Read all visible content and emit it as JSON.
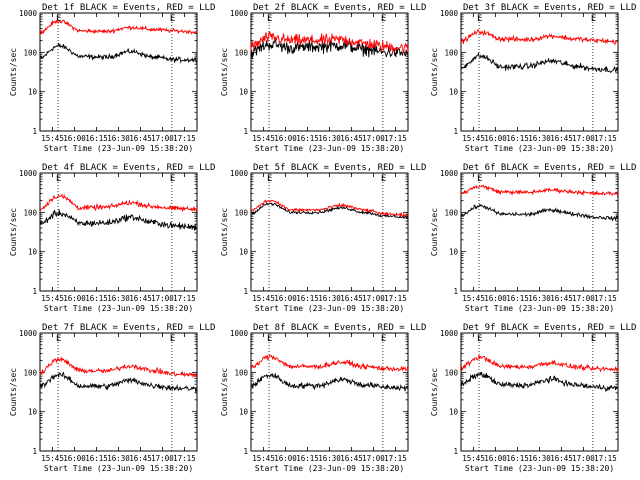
{
  "figure": {
    "xlabel": "Start Time (23-Jun-09 15:38:20)",
    "ylabel": "Counts/sec",
    "colors": {
      "events": "#000000",
      "lld": "#ff0000",
      "axes": "#000000"
    }
  },
  "chart_data": [
    {
      "type": "line",
      "title": "Det 1f BLACK = Events, RED = LLD",
      "xlim": [
        0,
        100
      ],
      "ylim": [
        1,
        1000
      ],
      "yscale": "log",
      "xticks": [
        "15:45",
        "16:00",
        "16:15",
        "16:30",
        "16:45",
        "17:00",
        "17:15"
      ],
      "yticks": [
        "1",
        "10",
        "100",
        "1000"
      ],
      "event_markers": [
        {
          "t": 11.5,
          "label": "E"
        },
        {
          "t": 84,
          "label": "E"
        }
      ],
      "series": [
        {
          "color": "#000000",
          "noise": 0.05,
          "x": [
            0,
            12,
            26,
            42,
            58,
            72,
            86,
            100
          ],
          "values": [
            70,
            145,
            78,
            75,
            105,
            75,
            65,
            65
          ]
        },
        {
          "color": "#ff0000",
          "noise": 0.04,
          "x": [
            0,
            12,
            26,
            42,
            58,
            72,
            86,
            100
          ],
          "values": [
            320,
            620,
            350,
            340,
            430,
            380,
            350,
            330
          ]
        }
      ]
    },
    {
      "type": "line",
      "title": "Det 2f BLACK = Events, RED = LLD",
      "xlim": [
        0,
        100
      ],
      "ylim": [
        1,
        1000
      ],
      "yscale": "log",
      "xticks": [
        "15:45",
        "16:00",
        "16:15",
        "16:30",
        "16:45",
        "17:00",
        "17:15"
      ],
      "yticks": [
        "1",
        "10",
        "100",
        "1000"
      ],
      "event_markers": [
        {
          "t": 11.5,
          "label": "E"
        },
        {
          "t": 84,
          "label": "E"
        }
      ],
      "series": [
        {
          "color": "#000000",
          "noise": 0.13,
          "x": [
            0,
            12,
            26,
            42,
            58,
            72,
            86,
            100
          ],
          "values": [
            100,
            160,
            130,
            140,
            150,
            120,
            100,
            95
          ]
        },
        {
          "color": "#ff0000",
          "noise": 0.12,
          "x": [
            0,
            12,
            26,
            42,
            58,
            72,
            86,
            100
          ],
          "values": [
            140,
            240,
            200,
            200,
            210,
            170,
            140,
            130
          ]
        }
      ]
    },
    {
      "type": "line",
      "title": "Det 3f BLACK = Events, RED = LLD",
      "xlim": [
        0,
        100
      ],
      "ylim": [
        1,
        1000
      ],
      "yscale": "log",
      "xticks": [
        "15:45",
        "16:00",
        "16:15",
        "16:30",
        "16:45",
        "17:00",
        "17:15"
      ],
      "yticks": [
        "1",
        "10",
        "100",
        "1000"
      ],
      "event_markers": [
        {
          "t": 11.5,
          "label": "E"
        },
        {
          "t": 84,
          "label": "E"
        }
      ],
      "series": [
        {
          "color": "#000000",
          "noise": 0.06,
          "x": [
            0,
            12,
            26,
            42,
            58,
            72,
            86,
            100
          ],
          "values": [
            40,
            80,
            42,
            44,
            60,
            45,
            38,
            35
          ]
        },
        {
          "color": "#ff0000",
          "noise": 0.05,
          "x": [
            0,
            12,
            26,
            42,
            58,
            72,
            86,
            100
          ],
          "values": [
            190,
            330,
            220,
            210,
            260,
            220,
            200,
            185
          ]
        }
      ]
    },
    {
      "type": "line",
      "title": "Det 4f BLACK = Events, RED = LLD",
      "xlim": [
        0,
        100
      ],
      "ylim": [
        1,
        1000
      ],
      "yscale": "log",
      "xticks": [
        "15:45",
        "16:00",
        "16:15",
        "16:30",
        "16:45",
        "17:00",
        "17:15"
      ],
      "yticks": [
        "1",
        "10",
        "100",
        "1000"
      ],
      "event_markers": [
        {
          "t": 11.5,
          "label": "E"
        },
        {
          "t": 84,
          "label": "E"
        }
      ],
      "series": [
        {
          "color": "#000000",
          "noise": 0.07,
          "x": [
            0,
            12,
            26,
            42,
            58,
            72,
            86,
            100
          ],
          "values": [
            50,
            95,
            52,
            54,
            75,
            55,
            45,
            42
          ]
        },
        {
          "color": "#ff0000",
          "noise": 0.05,
          "x": [
            0,
            12,
            26,
            42,
            58,
            72,
            86,
            100
          ],
          "values": [
            120,
            260,
            130,
            135,
            175,
            140,
            125,
            120
          ]
        }
      ]
    },
    {
      "type": "line",
      "title": "Det 5f BLACK = Events, RED = LLD",
      "xlim": [
        0,
        100
      ],
      "ylim": [
        1,
        1000
      ],
      "yscale": "log",
      "xticks": [
        "15:45",
        "16:00",
        "16:15",
        "16:30",
        "16:45",
        "17:00",
        "17:15"
      ],
      "yticks": [
        "1",
        "10",
        "100",
        "1000"
      ],
      "event_markers": [
        {
          "t": 11.5,
          "label": "E"
        },
        {
          "t": 84,
          "label": "E"
        }
      ],
      "series": [
        {
          "color": "#000000",
          "noise": 0.03,
          "x": [
            0,
            12,
            26,
            42,
            58,
            72,
            86,
            100
          ],
          "values": [
            95,
            165,
            100,
            100,
            130,
            100,
            80,
            75
          ]
        },
        {
          "color": "#ff0000",
          "noise": 0.03,
          "x": [
            0,
            12,
            26,
            42,
            58,
            72,
            86,
            100
          ],
          "values": [
            110,
            200,
            115,
            115,
            150,
            115,
            90,
            85
          ]
        }
      ]
    },
    {
      "type": "line",
      "title": "Det 6f BLACK = Events, RED = LLD",
      "xlim": [
        0,
        100
      ],
      "ylim": [
        1,
        1000
      ],
      "yscale": "log",
      "xticks": [
        "15:45",
        "16:00",
        "16:15",
        "16:30",
        "16:45",
        "17:00",
        "17:15"
      ],
      "yticks": [
        "1",
        "10",
        "100",
        "1000"
      ],
      "event_markers": [
        {
          "t": 11.5,
          "label": "E"
        },
        {
          "t": 84,
          "label": "E"
        }
      ],
      "series": [
        {
          "color": "#000000",
          "noise": 0.04,
          "x": [
            0,
            12,
            26,
            42,
            58,
            72,
            86,
            100
          ],
          "values": [
            85,
            145,
            90,
            88,
            115,
            90,
            75,
            70
          ]
        },
        {
          "color": "#ff0000",
          "noise": 0.04,
          "x": [
            0,
            12,
            26,
            42,
            58,
            72,
            86,
            100
          ],
          "values": [
            310,
            460,
            330,
            320,
            370,
            330,
            300,
            300
          ]
        }
      ]
    },
    {
      "type": "line",
      "title": "Det 7f BLACK = Events, RED = LLD",
      "xlim": [
        0,
        100
      ],
      "ylim": [
        1,
        1000
      ],
      "yscale": "log",
      "xticks": [
        "15:45",
        "16:00",
        "16:15",
        "16:30",
        "16:45",
        "17:00",
        "17:15"
      ],
      "yticks": [
        "1",
        "10",
        "100",
        "1000"
      ],
      "event_markers": [
        {
          "t": 11.5,
          "label": "E"
        },
        {
          "t": 84,
          "label": "E"
        }
      ],
      "series": [
        {
          "color": "#000000",
          "noise": 0.06,
          "x": [
            0,
            12,
            26,
            42,
            58,
            72,
            86,
            100
          ],
          "values": [
            45,
            85,
            45,
            44,
            62,
            46,
            40,
            38
          ]
        },
        {
          "color": "#ff0000",
          "noise": 0.05,
          "x": [
            0,
            12,
            26,
            42,
            58,
            72,
            86,
            100
          ],
          "values": [
            100,
            210,
            110,
            108,
            145,
            110,
            90,
            85
          ]
        }
      ]
    },
    {
      "type": "line",
      "title": "Det 8f BLACK = Events, RED = LLD",
      "xlim": [
        0,
        100
      ],
      "ylim": [
        1,
        1000
      ],
      "yscale": "log",
      "xticks": [
        "15:45",
        "16:00",
        "16:15",
        "16:30",
        "16:45",
        "17:00",
        "17:15"
      ],
      "yticks": [
        "1",
        "10",
        "100",
        "1000"
      ],
      "event_markers": [
        {
          "t": 11.5,
          "label": "E"
        },
        {
          "t": 84,
          "label": "E"
        }
      ],
      "series": [
        {
          "color": "#000000",
          "noise": 0.06,
          "x": [
            0,
            12,
            26,
            42,
            58,
            72,
            86,
            100
          ],
          "values": [
            45,
            85,
            46,
            46,
            65,
            48,
            42,
            40
          ]
        },
        {
          "color": "#ff0000",
          "noise": 0.05,
          "x": [
            0,
            12,
            26,
            42,
            58,
            72,
            86,
            100
          ],
          "values": [
            130,
            250,
            140,
            140,
            180,
            140,
            125,
            120
          ]
        }
      ]
    },
    {
      "type": "line",
      "title": "Det 9f BLACK = Events, RED = LLD",
      "xlim": [
        0,
        100
      ],
      "ylim": [
        1,
        1000
      ],
      "yscale": "log",
      "xticks": [
        "15:45",
        "16:00",
        "16:15",
        "16:30",
        "16:45",
        "17:00",
        "17:15"
      ],
      "yticks": [
        "1",
        "10",
        "100",
        "1000"
      ],
      "event_markers": [
        {
          "t": 11.5,
          "label": "E"
        },
        {
          "t": 84,
          "label": "E"
        }
      ],
      "series": [
        {
          "color": "#000000",
          "noise": 0.06,
          "x": [
            0,
            12,
            26,
            42,
            58,
            72,
            86,
            100
          ],
          "values": [
            48,
            88,
            48,
            47,
            66,
            48,
            42,
            40
          ]
        },
        {
          "color": "#ff0000",
          "noise": 0.05,
          "x": [
            0,
            12,
            26,
            42,
            58,
            72,
            86,
            100
          ],
          "values": [
            130,
            240,
            140,
            138,
            175,
            138,
            122,
            118
          ]
        }
      ]
    }
  ]
}
